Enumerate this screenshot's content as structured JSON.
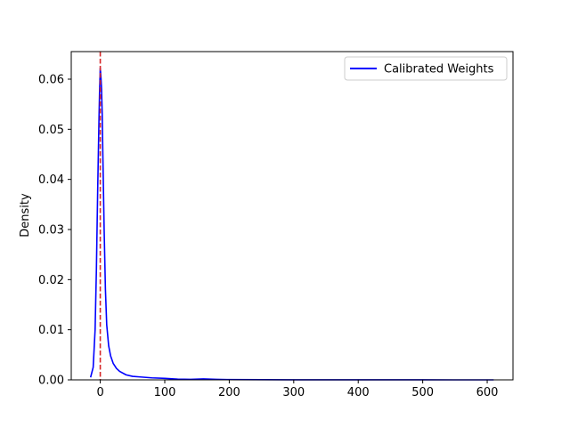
{
  "chart_data": {
    "type": "line",
    "title": "",
    "xlabel": "",
    "ylabel": "Density",
    "xlim": [
      -45,
      640
    ],
    "ylim": [
      0,
      0.0655
    ],
    "xticks": [
      0,
      100,
      200,
      300,
      400,
      500,
      600
    ],
    "yticks": [
      0.0,
      0.01,
      0.02,
      0.03,
      0.04,
      0.05,
      0.06
    ],
    "ytick_labels": [
      "0.00",
      "0.01",
      "0.02",
      "0.03",
      "0.04",
      "0.05",
      "0.06"
    ],
    "grid": false,
    "legend": {
      "placement": "upper right",
      "entries": [
        "Calibrated Weights"
      ]
    },
    "series": [
      {
        "name": "Calibrated Weights",
        "color": "#0000ff",
        "x": [
          -15,
          -11,
          -8,
          -6,
          -4,
          -2,
          -1,
          0,
          1,
          2,
          3,
          4,
          6,
          8,
          10,
          13,
          16,
          20,
          25,
          30,
          40,
          50,
          60,
          80,
          100,
          120,
          140,
          160,
          180,
          200,
          250,
          300,
          350,
          400,
          450,
          500,
          550,
          580,
          610
        ],
        "y": [
          0.0005,
          0.0025,
          0.01,
          0.022,
          0.038,
          0.052,
          0.058,
          0.0622,
          0.0605,
          0.058,
          0.053,
          0.045,
          0.03,
          0.018,
          0.011,
          0.0068,
          0.0048,
          0.0033,
          0.0023,
          0.0017,
          0.001,
          0.0007,
          0.0006,
          0.0004,
          0.0003,
          0.00015,
          0.0001,
          0.0002,
          0.0001,
          5e-05,
          3e-05,
          2e-05,
          1e-05,
          1e-05,
          1e-05,
          1e-05,
          0.0,
          0.0,
          0.0
        ]
      }
    ],
    "reference_lines": [
      {
        "orientation": "vertical",
        "x": 0,
        "color": "#d62728",
        "style": "dashed"
      }
    ]
  }
}
